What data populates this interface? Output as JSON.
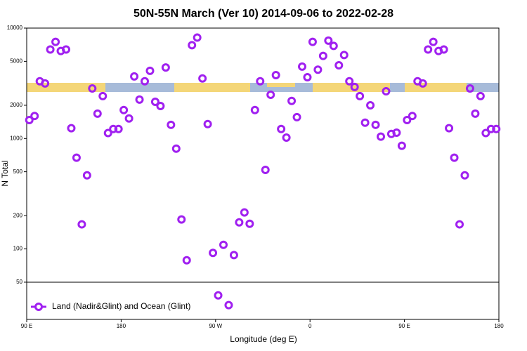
{
  "chart_data": {
    "type": "scatter",
    "title": "50N-55N March (Ver 10)   2014-09-06 to 2022-02-28",
    "xlabel": "Longitude (deg E)",
    "ylabel": "N Total",
    "xlim": [
      90,
      540
    ],
    "ylim": [
      23,
      10000
    ],
    "log_y": true,
    "legend": "bottom-left",
    "hline": 50,
    "xticks": [
      {
        "value": 90,
        "label": "90 E"
      },
      180,
      {
        "value": 270,
        "label": "90 W"
      },
      {
        "value": 360,
        "label": "0"
      },
      {
        "value": 450,
        "label": "90 E"
      },
      {
        "value": 540,
        "label": "180"
      }
    ],
    "yticks": [
      50,
      100,
      200,
      500,
      1000,
      2000,
      5000,
      10000
    ],
    "series": [
      {
        "name": "Land (Nadir&Glint) and Ocean (Glint)",
        "color": "#a020f0",
        "x": [
          92.5,
          97.5,
          102.5,
          107.5,
          112.5,
          117.5,
          122.5,
          127.5,
          132.5,
          137.5,
          142.5,
          147.5,
          152.5,
          157.5,
          162.5,
          167.5,
          172.5,
          177.5,
          182.5,
          187.5,
          192.5,
          197.5,
          202.5,
          207.5,
          212.5,
          217.5,
          222.5,
          227.5,
          232.5,
          237.5,
          242.5,
          247.5,
          252.5,
          257.5,
          262.5,
          267.5,
          272.5,
          277.5,
          282.5,
          287.5,
          292.5,
          297.5,
          302.5,
          307.5,
          312.5,
          317.5,
          322.5,
          327.5,
          332.5,
          337.5,
          342.5,
          347.5,
          352.5,
          357.5,
          362.5,
          367.5,
          372.5,
          377.5,
          382.5,
          387.5,
          392.5,
          397.5,
          402.5,
          407.5,
          412.5,
          417.5,
          422.5,
          427.5,
          432.5,
          437.5,
          442.5,
          447.5,
          452.5,
          457.5,
          462.5,
          467.5,
          472.5,
          477.5,
          482.5,
          487.5,
          492.5,
          497.5,
          502.5,
          507.5,
          512.5,
          517.5,
          522.5,
          527.5,
          532.5,
          537.5
        ],
        "values": [
          1470,
          1600,
          3300,
          3150,
          6400,
          7500,
          6200,
          6400,
          1240,
          670,
          167,
          464,
          2840,
          1680,
          2420,
          1120,
          1220,
          1220,
          1810,
          1520,
          3650,
          2250,
          3300,
          4100,
          2150,
          1970,
          4400,
          1330,
          810,
          185,
          79,
          7000,
          8200,
          3500,
          1350,
          92,
          38,
          109,
          31,
          88,
          174,
          214,
          169,
          1810,
          3300,
          520,
          2490,
          3750,
          1220,
          1020,
          2190,
          1560,
          4480,
          3590,
          7500,
          4200,
          5600,
          7700,
          6900,
          4600,
          5700,
          3300,
          2930,
          2420,
          1390,
          2000,
          1330,
          1040,
          2680,
          1100,
          1130,
          860,
          1470,
          1600,
          3300,
          3150,
          6400,
          7500,
          6200,
          6400,
          1240,
          670,
          167,
          464,
          2840,
          1680,
          2420,
          1120,
          1220,
          1220
        ]
      }
    ]
  }
}
